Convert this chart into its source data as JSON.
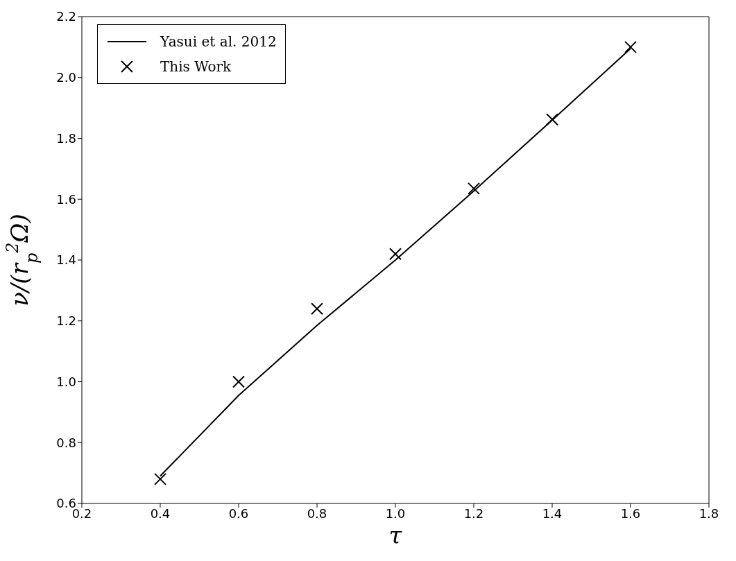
{
  "chart_data": {
    "type": "line",
    "xlabel": "τ",
    "ylabel": "ν/(r$_{p}$$^{2}$Ω)",
    "xlim": [
      0.2,
      1.8
    ],
    "xticks": [
      {
        "value": 0.2,
        "label": "0.2"
      },
      {
        "value": 0.4,
        "label": "0.4"
      },
      {
        "value": 0.6,
        "label": "0.6"
      },
      {
        "value": 0.8,
        "label": "0.8"
      },
      {
        "value": 1.0,
        "label": "1.0"
      },
      {
        "value": 1.2,
        "label": "1.2"
      },
      {
        "value": 1.4,
        "label": "1.4"
      },
      {
        "value": 1.6,
        "label": "1.6"
      },
      {
        "value": 1.8,
        "label": "1.8"
      }
    ],
    "ylim": [
      0.6,
      2.2
    ],
    "yticks": [
      {
        "value": 0.6,
        "label": "0.6"
      },
      {
        "value": 0.8,
        "label": "0.8"
      },
      {
        "value": 1.0,
        "label": "1.0"
      },
      {
        "value": 1.2,
        "label": "1.2"
      },
      {
        "value": 1.4,
        "label": "1.4"
      },
      {
        "value": 1.6,
        "label": "1.6"
      },
      {
        "value": 1.8,
        "label": "1.8"
      },
      {
        "value": 2.0,
        "label": "2.0"
      },
      {
        "value": 2.2,
        "label": "2.2"
      }
    ],
    "grid": false,
    "legend": "top left",
    "series": [
      {
        "name": "Yasui et al. 2012",
        "color": "#000000",
        "marker": "none",
        "line_style": "solid",
        "x": [
          0.4,
          0.6,
          0.8,
          1.0,
          1.2,
          1.4,
          1.6
        ],
        "values": [
          0.69,
          0.955,
          1.185,
          1.4,
          1.627,
          1.86,
          2.095
        ]
      },
      {
        "name": "This Work",
        "type": "scatter",
        "color": "#000000",
        "marker": "cross",
        "x": [
          0.4,
          0.6,
          0.8,
          1.0,
          1.2,
          1.4,
          1.6
        ],
        "values": [
          0.68,
          1.0,
          1.24,
          1.42,
          1.635,
          1.862,
          2.1
        ]
      }
    ]
  }
}
